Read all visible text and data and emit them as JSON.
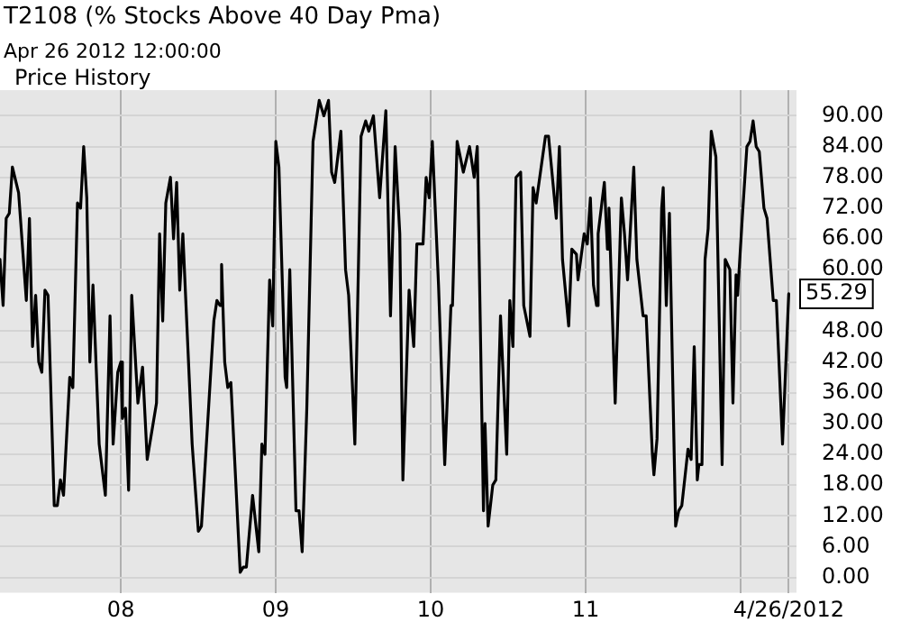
{
  "chart_data": {
    "type": "line",
    "title": "T2108 (% Stocks Above 40 Day Pma)",
    "subtitle": "Apr 26 2012 12:00:00",
    "annotations": [
      "Price History"
    ],
    "xlim": [
      2007.22,
      2012.36
    ],
    "xticks": [
      {
        "value": 2008,
        "label": "08"
      },
      {
        "value": 2009,
        "label": "09"
      },
      {
        "value": 2010,
        "label": "10"
      },
      {
        "value": 2011,
        "label": "11"
      },
      {
        "value": 2012,
        "label": null
      },
      {
        "value": 2012.31,
        "label": "4/26/2012"
      }
    ],
    "ylim": [
      -3,
      95
    ],
    "yticks": [
      {
        "value": 0,
        "label": "0.00"
      },
      {
        "value": 6,
        "label": "6.00"
      },
      {
        "value": 12,
        "label": "12.00"
      },
      {
        "value": 18,
        "label": "18.00"
      },
      {
        "value": 24,
        "label": "24.00"
      },
      {
        "value": 30,
        "label": "30.00"
      },
      {
        "value": 36,
        "label": "36.00"
      },
      {
        "value": 42,
        "label": "42.00"
      },
      {
        "value": 48,
        "label": "48.00"
      },
      {
        "value": 60,
        "label": "60.00"
      },
      {
        "value": 66,
        "label": "66.00"
      },
      {
        "value": 72,
        "label": "72.00"
      },
      {
        "value": 78,
        "label": "78.00"
      },
      {
        "value": 84,
        "label": "84.00"
      },
      {
        "value": 90,
        "label": "90.00"
      }
    ],
    "grid": true,
    "marker": "none",
    "line_style": "solid",
    "series": [
      {
        "color": "#000000",
        "x": [
          2007.22,
          2007.24,
          2007.26,
          2007.28,
          2007.3,
          2007.34,
          2007.39,
          2007.41,
          2007.43,
          2007.45,
          2007.47,
          2007.49,
          2007.51,
          2007.53,
          2007.57,
          2007.59,
          2007.61,
          2007.63,
          2007.67,
          2007.69,
          2007.72,
          2007.74,
          2007.76,
          2007.78,
          2007.8,
          2007.82,
          2007.86,
          2007.9,
          2007.93,
          2007.95,
          2007.98,
          2008.0,
          2008.01,
          2008.03,
          2008.05,
          2008.07,
          2008.11,
          2008.14,
          2008.17,
          2008.23,
          2008.25,
          2008.27,
          2008.29,
          2008.32,
          2008.34,
          2008.36,
          2008.38,
          2008.4,
          2008.46,
          2008.5,
          2008.52,
          2008.6,
          2008.62,
          2008.64,
          2008.65,
          2008.67,
          2008.69,
          2008.71,
          2008.77,
          2008.79,
          2008.81,
          2008.85,
          2008.89,
          2008.91,
          2008.93,
          2008.96,
          2008.98,
          2009.0,
          2009.02,
          2009.06,
          2009.07,
          2009.09,
          2009.13,
          2009.15,
          2009.17,
          2009.2,
          2009.24,
          2009.28,
          2009.31,
          2009.34,
          2009.36,
          2009.38,
          2009.42,
          2009.45,
          2009.47,
          2009.51,
          2009.55,
          2009.58,
          2009.6,
          2009.63,
          2009.67,
          2009.71,
          2009.74,
          2009.77,
          2009.8,
          2009.82,
          2009.86,
          2009.89,
          2009.91,
          2009.95,
          2009.97,
          2009.99,
          2010.01,
          2010.05,
          2010.09,
          2010.13,
          2010.14,
          2010.17,
          2010.21,
          2010.25,
          2010.28,
          2010.3,
          2010.34,
          2010.35,
          2010.37,
          2010.4,
          2010.42,
          2010.45,
          2010.49,
          2010.51,
          2010.53,
          2010.55,
          2010.58,
          2010.6,
          2010.64,
          2010.66,
          2010.68,
          2010.74,
          2010.76,
          2010.81,
          2010.83,
          2010.85,
          2010.89,
          2010.91,
          2010.94,
          2010.95,
          2010.99,
          2011.01,
          2011.03,
          2011.05,
          2011.07,
          2011.08,
          2011.12,
          2011.14,
          2011.15,
          2011.19,
          2011.23,
          2011.25,
          2011.27,
          2011.31,
          2011.33,
          2011.37,
          2011.39,
          2011.43,
          2011.44,
          2011.46,
          2011.49,
          2011.5,
          2011.52,
          2011.54,
          2011.58,
          2011.6,
          2011.62,
          2011.66,
          2011.68,
          2011.7,
          2011.72,
          2011.73,
          2011.75,
          2011.77,
          2011.79,
          2011.81,
          2011.84,
          2011.88,
          2011.9,
          2011.93,
          2011.95,
          2011.97,
          2011.98,
          2012.01,
          2012.04,
          2012.06,
          2012.08,
          2012.1,
          2012.12,
          2012.15,
          2012.17,
          2012.21,
          2012.23,
          2012.27,
          2012.31
        ],
        "values": [
          62,
          53,
          70,
          71,
          80,
          75,
          54,
          70,
          45,
          55,
          42,
          40,
          56,
          55,
          14,
          14,
          19,
          16,
          39,
          37,
          73,
          72,
          84,
          74,
          42,
          57,
          26,
          16,
          51,
          26,
          40,
          42,
          31,
          33,
          17,
          55,
          34,
          41,
          23,
          34,
          67,
          50,
          73,
          78,
          66,
          77,
          56,
          67,
          26,
          9,
          10,
          50,
          54,
          53,
          61,
          42,
          37,
          38,
          1,
          2,
          2,
          16,
          5,
          26,
          24,
          58,
          49,
          85,
          80,
          39,
          37,
          60,
          13,
          13,
          5,
          33,
          85,
          93,
          90,
          93,
          79,
          77,
          87,
          60,
          55,
          26,
          86,
          89,
          87,
          90,
          74,
          91,
          51,
          84,
          67,
          19,
          56,
          45,
          65,
          65,
          78,
          74,
          85,
          57,
          22,
          53,
          53,
          85,
          79,
          84,
          78,
          84,
          13,
          30,
          10,
          18,
          19,
          51,
          24,
          54,
          45,
          78,
          79,
          53,
          47,
          76,
          73,
          86,
          86,
          70,
          84,
          62,
          49,
          64,
          63,
          58,
          67,
          65,
          74,
          57,
          53,
          67,
          77,
          64,
          72,
          34,
          74,
          67,
          58,
          80,
          62,
          51,
          51,
          24,
          20,
          27,
          72,
          76,
          53,
          71,
          10,
          13,
          14,
          25,
          23,
          45,
          19,
          22,
          22,
          62,
          68,
          87,
          82,
          22,
          62,
          60,
          34,
          59,
          55,
          70,
          84,
          85,
          89,
          84,
          83,
          72,
          70,
          54,
          54,
          26,
          55.29
        ],
        "value_labels": [
          null,
          null,
          null,
          null,
          null,
          null,
          null,
          null,
          null,
          null,
          null,
          null,
          null,
          null,
          null,
          null,
          null,
          null,
          null,
          null,
          null,
          null,
          null,
          null,
          null,
          null,
          null,
          null,
          null,
          null,
          null,
          null,
          null,
          null,
          null,
          null,
          null,
          null,
          null,
          null,
          null,
          null,
          null,
          null,
          null,
          null,
          null,
          null,
          null,
          null,
          null,
          null,
          null,
          null,
          null,
          null,
          null,
          null,
          null,
          null,
          null,
          null,
          null,
          null,
          null,
          null,
          null,
          null,
          null,
          null,
          null,
          null,
          null,
          null,
          null,
          null,
          null,
          null,
          null,
          null,
          null,
          null,
          null,
          null,
          null,
          null,
          null,
          null,
          null,
          null,
          null,
          null,
          null,
          null,
          null,
          null,
          null,
          null,
          null,
          null,
          null,
          null,
          null,
          null,
          null,
          null,
          null,
          null,
          null,
          null,
          null,
          null,
          null,
          null,
          null,
          null,
          null,
          null,
          null,
          null,
          null,
          null,
          null,
          null,
          null,
          null,
          null,
          null,
          null,
          null,
          null,
          null,
          null,
          null,
          null,
          null,
          null,
          null,
          null,
          null,
          null,
          null,
          null,
          null,
          null,
          null,
          null,
          null,
          null,
          null,
          null,
          null,
          null,
          null,
          null,
          null,
          null,
          null,
          null,
          null,
          null,
          null,
          null,
          null,
          null,
          null,
          null,
          null,
          null,
          null,
          null,
          null,
          null,
          null,
          null,
          null,
          null,
          null,
          null,
          null,
          null,
          null,
          null,
          null,
          null,
          null,
          null,
          null,
          null,
          null,
          "55.29"
        ]
      }
    ]
  }
}
